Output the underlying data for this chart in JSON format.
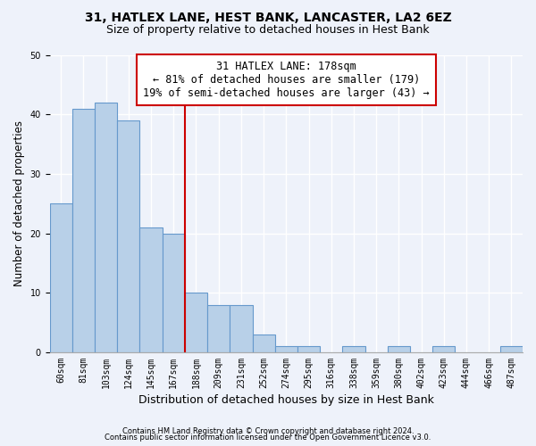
{
  "title1": "31, HATLEX LANE, HEST BANK, LANCASTER, LA2 6EZ",
  "title2": "Size of property relative to detached houses in Hest Bank",
  "xlabel": "Distribution of detached houses by size in Hest Bank",
  "ylabel": "Number of detached properties",
  "categories": [
    "60sqm",
    "81sqm",
    "103sqm",
    "124sqm",
    "145sqm",
    "167sqm",
    "188sqm",
    "209sqm",
    "231sqm",
    "252sqm",
    "274sqm",
    "295sqm",
    "316sqm",
    "338sqm",
    "359sqm",
    "380sqm",
    "402sqm",
    "423sqm",
    "444sqm",
    "466sqm",
    "487sqm"
  ],
  "values": [
    25,
    41,
    42,
    39,
    21,
    20,
    10,
    8,
    8,
    3,
    1,
    1,
    0,
    1,
    0,
    1,
    0,
    1,
    0,
    0,
    1
  ],
  "bar_color": "#b8d0e8",
  "bar_edge_color": "#6699cc",
  "vline_color": "#cc0000",
  "vline_pos": 5.5,
  "annotation_line1": "31 HATLEX LANE: 178sqm",
  "annotation_line2": "← 81% of detached houses are smaller (179)",
  "annotation_line3": "19% of semi-detached houses are larger (43) →",
  "ylim": [
    0,
    50
  ],
  "background_color": "#eef2fa",
  "plot_bg_color": "#eef2fa",
  "footer1": "Contains HM Land Registry data © Crown copyright and database right 2024.",
  "footer2": "Contains public sector information licensed under the Open Government Licence v3.0.",
  "title_fontsize": 10,
  "subtitle_fontsize": 9,
  "tick_fontsize": 7,
  "ylabel_fontsize": 8.5,
  "xlabel_fontsize": 9,
  "ann_fontsize": 8.5,
  "footer_fontsize": 6
}
